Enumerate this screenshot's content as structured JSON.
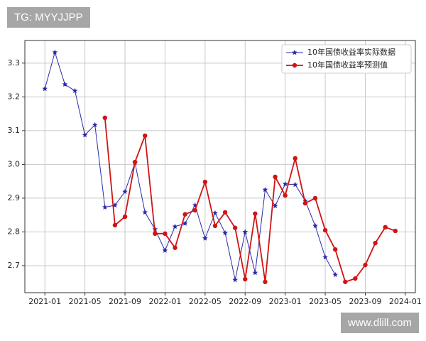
{
  "watermarks": [
    "TG: MYYJJPP",
    "www.dlill.com"
  ],
  "chart_data": {
    "type": "line",
    "series": [
      {
        "name": "10年国债收益率实际数据",
        "color": "#2a2aa8",
        "marker": "star",
        "x": [
          "2021-01",
          "2021-02",
          "2021-03",
          "2021-04",
          "2021-05",
          "2021-06",
          "2021-07",
          "2021-08",
          "2021-09",
          "2021-10",
          "2021-11",
          "2021-12",
          "2022-01",
          "2022-02",
          "2022-03",
          "2022-04",
          "2022-05",
          "2022-06",
          "2022-07",
          "2022-08",
          "2022-09",
          "2022-10",
          "2022-11",
          "2022-12",
          "2023-01",
          "2023-02",
          "2023-03",
          "2023-04",
          "2023-05",
          "2023-06"
        ],
        "values": [
          3.224,
          3.332,
          3.237,
          3.218,
          3.087,
          3.117,
          2.873,
          2.879,
          2.919,
          3.005,
          2.858,
          2.808,
          2.745,
          2.816,
          2.825,
          2.879,
          2.781,
          2.856,
          2.797,
          2.658,
          2.8,
          2.679,
          2.925,
          2.877,
          2.942,
          2.94,
          2.892,
          2.818,
          2.725,
          2.673
        ]
      },
      {
        "name": "10年国债收益率预测值",
        "color": "#d01414",
        "marker": "circle",
        "x": [
          "2021-07",
          "2021-08",
          "2021-09",
          "2021-10",
          "2021-11",
          "2021-12",
          "2022-01",
          "2022-02",
          "2022-03",
          "2022-04",
          "2022-05",
          "2022-06",
          "2022-07",
          "2022-08",
          "2022-09",
          "2022-10",
          "2022-11",
          "2022-12",
          "2023-01",
          "2023-02",
          "2023-03",
          "2023-04",
          "2023-05",
          "2023-06",
          "2023-07",
          "2023-08",
          "2023-09",
          "2023-10",
          "2023-11",
          "2023-12"
        ],
        "values": [
          3.138,
          2.82,
          2.845,
          3.007,
          3.085,
          2.795,
          2.795,
          2.753,
          2.852,
          2.864,
          2.948,
          2.818,
          2.858,
          2.812,
          2.66,
          2.854,
          2.652,
          2.963,
          2.908,
          3.018,
          2.885,
          2.9,
          2.805,
          2.748,
          2.652,
          2.662,
          2.702,
          2.767,
          2.814,
          2.803
        ]
      }
    ],
    "xlim": [
      "2020-11",
      "2024-02"
    ],
    "xticks": [
      "2021-01",
      "2021-05",
      "2021-09",
      "2022-01",
      "2022-05",
      "2022-09",
      "2023-01",
      "2023-05",
      "2023-09",
      "2024-01"
    ],
    "ylim": [
      2.62,
      3.367
    ],
    "yticks": [
      2.7,
      2.8,
      2.9,
      {
        "value": 3,
        "label": "3.0"
      },
      3.1,
      3.2,
      3.3
    ],
    "grid": true,
    "legend": "upper right"
  }
}
